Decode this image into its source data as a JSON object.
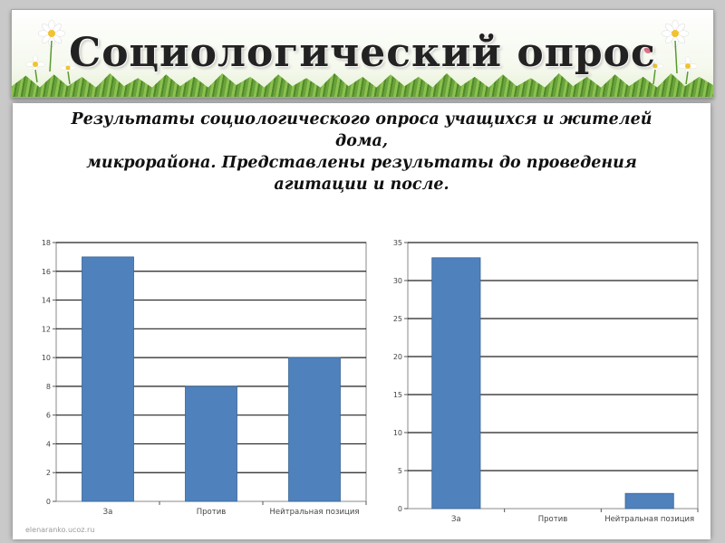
{
  "header": {
    "title": "Социологический опрос"
  },
  "subtitle": {
    "lines": [
      "Результаты социологического опроса учащихся и жителей",
      "дома,",
      "микрорайона. Представлены результаты до проведения",
      "агитации и после."
    ]
  },
  "footer": {
    "watermark": "elenaranko.ucoz.ru"
  },
  "colors": {
    "bar": "#4f81bd",
    "gridline": "#222222"
  },
  "chart_data": [
    {
      "type": "bar",
      "categories": [
        "За",
        "Против",
        "Нейтральная позиция"
      ],
      "values": [
        17,
        8,
        10
      ],
      "ylim": [
        0,
        18
      ],
      "yticks": [
        0,
        2,
        4,
        6,
        8,
        10,
        12,
        14,
        16,
        18
      ],
      "grid": true
    },
    {
      "type": "bar",
      "categories": [
        "За",
        "Против",
        "Нейтральная позиция"
      ],
      "values": [
        33,
        0,
        2
      ],
      "ylim": [
        0,
        35
      ],
      "yticks": [
        0,
        5,
        10,
        15,
        20,
        25,
        30,
        35
      ],
      "grid": true
    }
  ]
}
